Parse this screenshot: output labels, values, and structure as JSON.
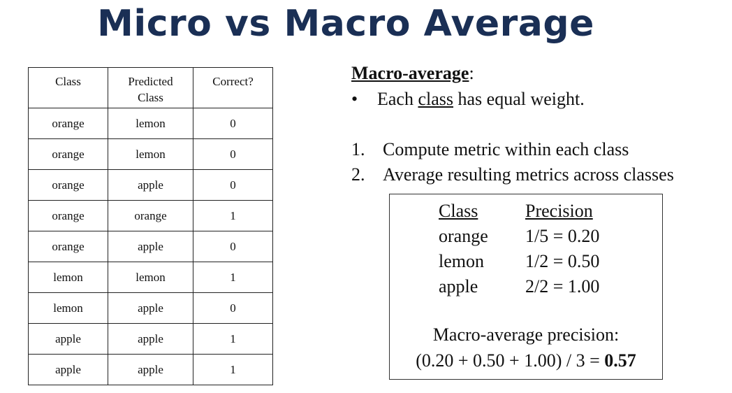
{
  "title": "Micro vs Macro Average",
  "table": {
    "headers": [
      "Class",
      "Predicted\nClass",
      "Correct?"
    ],
    "rows": [
      [
        "orange",
        "lemon",
        "0"
      ],
      [
        "orange",
        "lemon",
        "0"
      ],
      [
        "orange",
        "apple",
        "0"
      ],
      [
        "orange",
        "orange",
        "1"
      ],
      [
        "orange",
        "apple",
        "0"
      ],
      [
        "lemon",
        "lemon",
        "1"
      ],
      [
        "lemon",
        "apple",
        "0"
      ],
      [
        "apple",
        "apple",
        "1"
      ],
      [
        "apple",
        "apple",
        "1"
      ]
    ]
  },
  "macro": {
    "heading": "Macro-average",
    "colon": ":",
    "bullet": "•",
    "bullet_pre": "Each",
    "bullet_underlined": "class",
    "bullet_post": "has equal weight.",
    "steps": [
      {
        "num": "1.",
        "text": "Compute metric within each class"
      },
      {
        "num": "2.",
        "text": "Average resulting metrics across classes"
      }
    ]
  },
  "precision_box": {
    "header_class": "Class",
    "header_precision": "Precision",
    "rows": [
      {
        "class": "orange",
        "precision": "1/5 = 0.20"
      },
      {
        "class": "lemon",
        "precision": "1/2 = 0.50"
      },
      {
        "class": "apple",
        "precision": "2/2 = 1.00"
      }
    ],
    "label": "Macro-average precision:",
    "formula": "(0.20 + 0.50 + 1.00) / 3 =",
    "result": "0.57"
  }
}
